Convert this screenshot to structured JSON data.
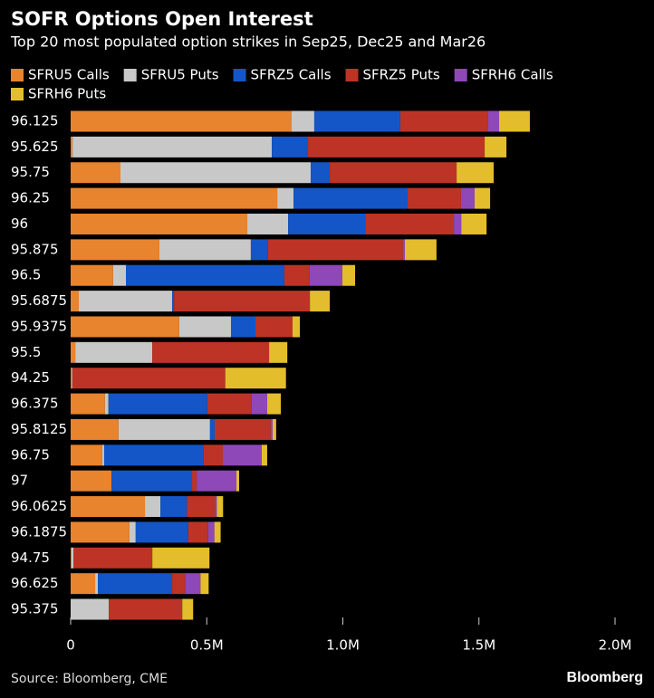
{
  "chart_data": {
    "type": "stacked_bar_horizontal",
    "title": "SOFR Options Open Interest",
    "subtitle": "Top 20 most populated option strikes in Sep25, Dec25 and Mar26",
    "source": "Source: Bloomberg, CME",
    "logo": "Bloomberg",
    "categories": [
      "96.125",
      "95.625",
      "95.75",
      "96.25",
      "96",
      "95.875",
      "96.5",
      "95.6875",
      "95.9375",
      "95.5",
      "94.25",
      "96.375",
      "95.8125",
      "96.75",
      "97",
      "96.0625",
      "96.1875",
      "94.75",
      "96.625",
      "95.375"
    ],
    "series": [
      {
        "name": "SFRU5 Calls",
        "color": "#e8832e",
        "values": [
          812000,
          7000,
          183000,
          759000,
          649000,
          326000,
          156000,
          30000,
          399000,
          17000,
          3000,
          126000,
          176000,
          116000,
          150000,
          273000,
          216000,
          3000,
          90000,
          0
        ]
      },
      {
        "name": "SFRU5 Puts",
        "color": "#c8c8c8",
        "values": [
          83000,
          732000,
          699000,
          60000,
          150000,
          336000,
          47000,
          343000,
          190000,
          283000,
          3000,
          13000,
          336000,
          7000,
          0,
          57000,
          23000,
          7000,
          10000,
          140000
        ]
      },
      {
        "name": "SFRZ5 Calls",
        "color": "#1456c8",
        "values": [
          316000,
          133000,
          70000,
          419000,
          283000,
          63000,
          582000,
          7000,
          90000,
          0,
          0,
          363000,
          17000,
          366000,
          296000,
          97000,
          193000,
          0,
          273000,
          0
        ]
      },
      {
        "name": "SFRZ5 Puts",
        "color": "#bd3426",
        "values": [
          323000,
          649000,
          466000,
          196000,
          326000,
          496000,
          93000,
          499000,
          136000,
          429000,
          562000,
          163000,
          206000,
          70000,
          17000,
          103000,
          73000,
          290000,
          47000,
          270000
        ]
      },
      {
        "name": "SFRH6 Calls",
        "color": "#8e48b8",
        "values": [
          40000,
          0,
          0,
          50000,
          27000,
          7000,
          120000,
          0,
          0,
          0,
          0,
          57000,
          7000,
          143000,
          146000,
          7000,
          23000,
          0,
          57000,
          0
        ]
      },
      {
        "name": "SFRH6 Puts",
        "color": "#e4bd2c",
        "values": [
          113000,
          80000,
          136000,
          57000,
          93000,
          116000,
          47000,
          73000,
          27000,
          67000,
          223000,
          50000,
          13000,
          20000,
          10000,
          23000,
          23000,
          210000,
          30000,
          40000
        ]
      }
    ],
    "xlim": [
      0,
      2000000
    ],
    "xticks": [
      0,
      {
        "value": 500000,
        "label": "0.5M"
      },
      {
        "value": 1000000,
        "label": "1.0M"
      },
      {
        "value": 1500000,
        "label": "1.5M"
      },
      {
        "value": 2000000,
        "label": "2.0M"
      }
    ],
    "legend": "top"
  }
}
